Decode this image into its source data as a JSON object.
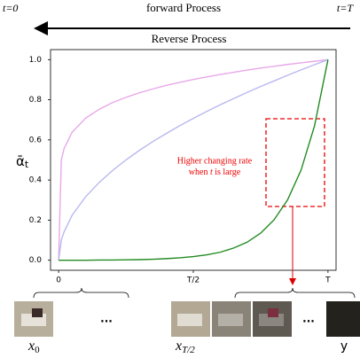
{
  "header": {
    "start": "t=0",
    "forward": "forward Process",
    "end": "t=T",
    "reverse": "Reverse Process"
  },
  "chart_data": {
    "type": "line",
    "ylabel": {
      "symbol": "ᾱ",
      "subscript": "t"
    },
    "x": [
      0,
      0.01,
      0.02,
      0.05,
      0.1,
      0.15,
      0.2,
      0.25,
      0.3,
      0.35,
      0.4,
      0.45,
      0.5,
      0.55,
      0.6,
      0.65,
      0.7,
      0.75,
      0.8,
      0.85,
      0.9,
      0.95,
      1
    ],
    "series": [
      {
        "color": "#e8a8e8",
        "values": [
          0,
          0.5,
          0.556,
          0.638,
          0.708,
          0.752,
          0.786,
          0.812,
          0.835,
          0.854,
          0.872,
          0.887,
          0.901,
          0.914,
          0.926,
          0.937,
          0.948,
          0.958,
          0.967,
          0.976,
          0.984,
          0.992,
          1
        ]
      },
      {
        "color": "#b8b8f0",
        "values": [
          0,
          0.1,
          0.141,
          0.224,
          0.316,
          0.387,
          0.447,
          0.5,
          0.548,
          0.592,
          0.632,
          0.671,
          0.707,
          0.742,
          0.775,
          0.806,
          0.837,
          0.866,
          0.894,
          0.922,
          0.949,
          0.975,
          1
        ]
      },
      {
        "color": "#228b22",
        "values": [
          0,
          0,
          0,
          0,
          0,
          0.001,
          0.001,
          0.002,
          0.003,
          0.005,
          0.008,
          0.012,
          0.018,
          0.027,
          0.04,
          0.061,
          0.09,
          0.135,
          0.202,
          0.301,
          0.449,
          0.67,
          1
        ]
      }
    ],
    "xlim": [
      -0.03,
      1.03
    ],
    "ylim": [
      -0.05,
      1.05
    ],
    "xticks": [
      0,
      {
        "value": 0.5,
        "label": "T/2"
      },
      {
        "value": 1,
        "label": "T"
      }
    ],
    "yticks": [
      {
        "value": 0,
        "label": "0.0"
      },
      {
        "value": 0.2,
        "label": "0.2"
      },
      {
        "value": 0.4,
        "label": "0.4"
      },
      {
        "value": 0.6,
        "label": "0.6"
      },
      {
        "value": 0.8,
        "label": "0.8"
      },
      {
        "value": 1,
        "label": "1.0"
      }
    ],
    "annotation": {
      "line1": "Higher changing rate",
      "line2_pre": "when ",
      "line2_var": "t",
      "line2_post": " is large"
    }
  },
  "footer": {
    "dots_left": "...",
    "dots_right": "...",
    "label_start": {
      "base": "x",
      "sub": "0"
    },
    "label_mid": {
      "base": "x",
      "sub": "T/2"
    },
    "label_end": "y"
  }
}
